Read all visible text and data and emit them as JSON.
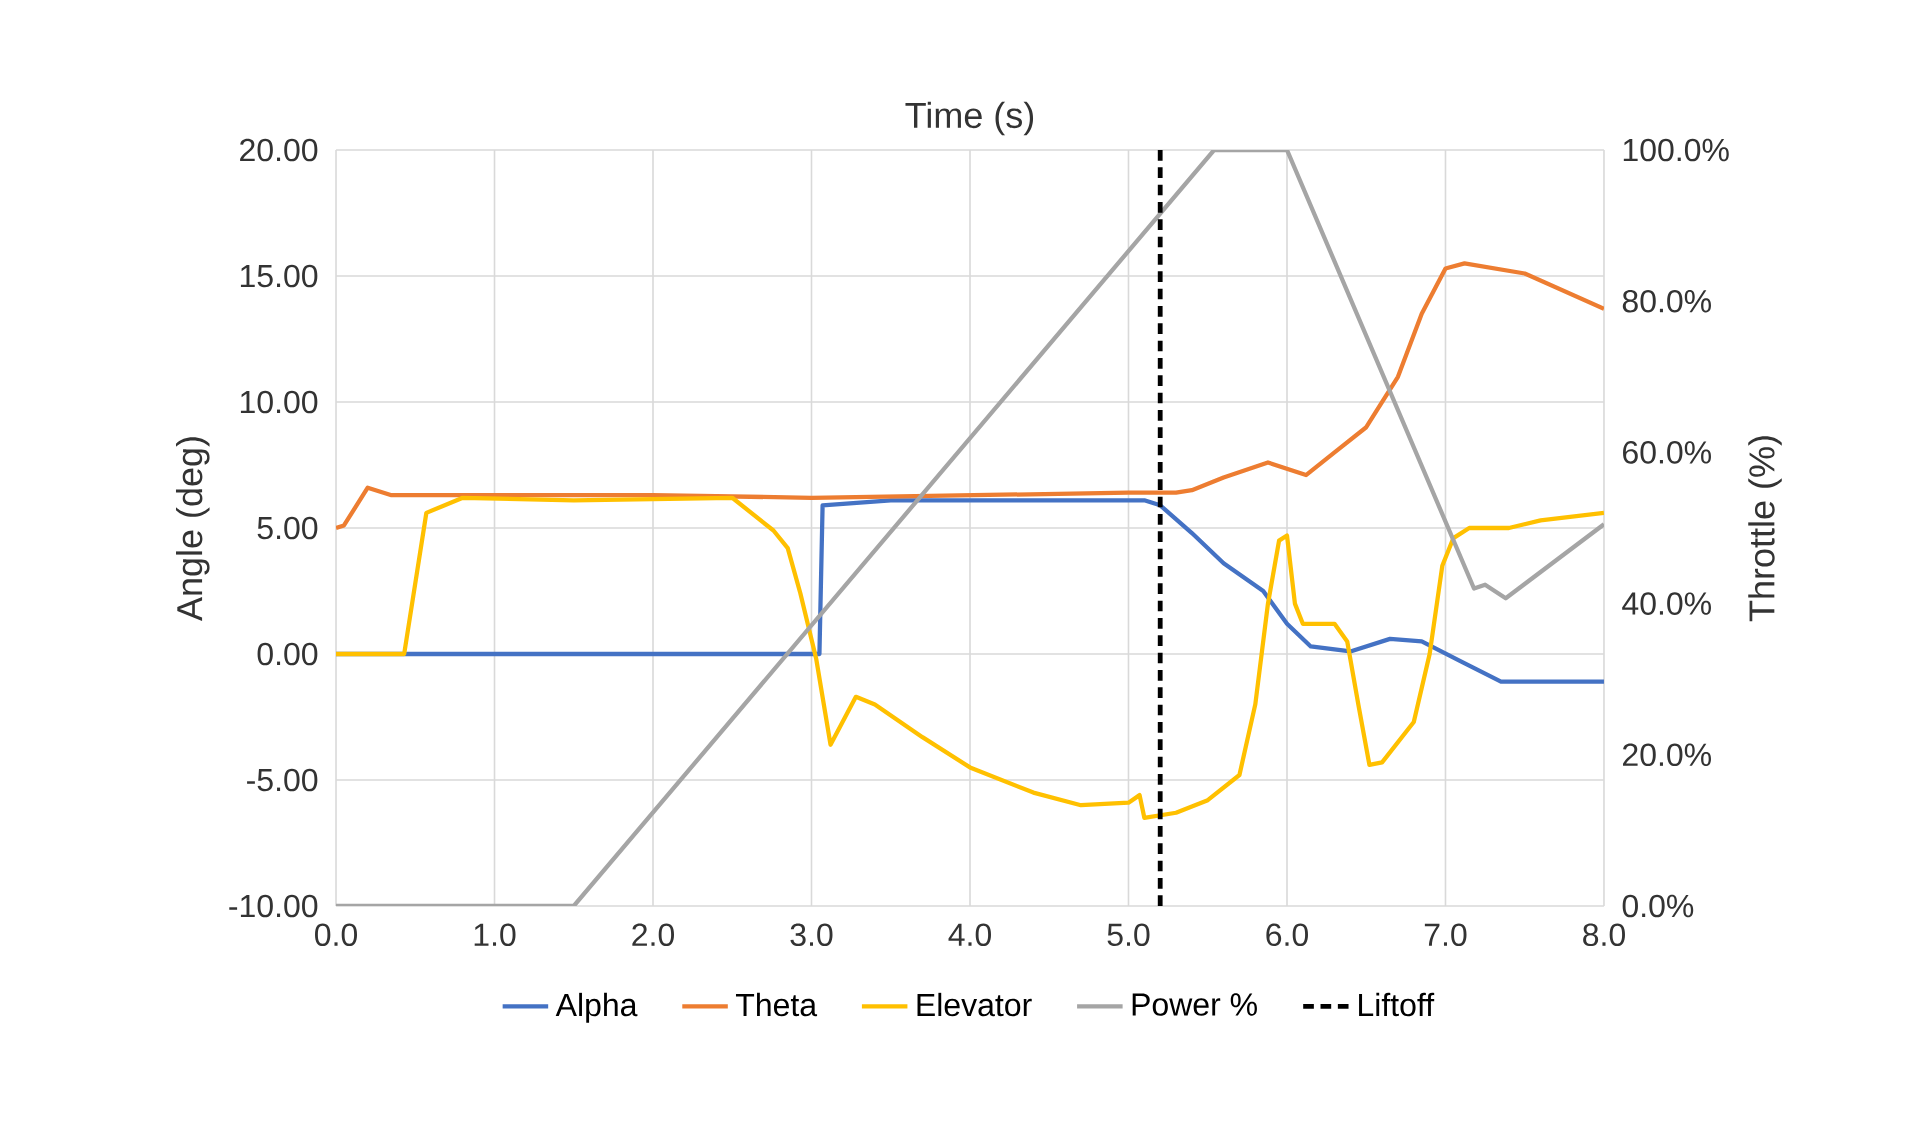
{
  "chart_data": {
    "type": "line",
    "title": "Time (s)",
    "ylabel": "Angle (deg)",
    "y2label": "Throttle (%)",
    "xlim": [
      0,
      8
    ],
    "xticks": [
      {
        "value": 0,
        "label": "0.0"
      },
      {
        "value": 1,
        "label": "1.0"
      },
      {
        "value": 2,
        "label": "2.0"
      },
      {
        "value": 3,
        "label": "3.0"
      },
      {
        "value": 4,
        "label": "4.0"
      },
      {
        "value": 5,
        "label": "5.0"
      },
      {
        "value": 6,
        "label": "6.0"
      },
      {
        "value": 7,
        "label": "7.0"
      },
      {
        "value": 8,
        "label": "8.0"
      }
    ],
    "ylim": [
      -10,
      20
    ],
    "yticks": [
      {
        "value": -10,
        "label": "-10.00"
      },
      {
        "value": -5,
        "label": "-5.00"
      },
      {
        "value": 0,
        "label": "0.00"
      },
      {
        "value": 5,
        "label": "5.00"
      },
      {
        "value": 10,
        "label": "10.00"
      },
      {
        "value": 15,
        "label": "15.00"
      },
      {
        "value": 20,
        "label": "20.00"
      }
    ],
    "y2lim": [
      0,
      100
    ],
    "y2ticks": [
      {
        "value": 0,
        "label": "0.0%"
      },
      {
        "value": 20,
        "label": "20.0%"
      },
      {
        "value": 40,
        "label": "40.0%"
      },
      {
        "value": 60,
        "label": "60.0%"
      },
      {
        "value": 80,
        "label": "80.0%"
      },
      {
        "value": 100,
        "label": "100.0%"
      }
    ],
    "grid": true,
    "legend": "bottom",
    "marker": "none",
    "series": [
      {
        "name": "Alpha",
        "color": "#4472c4",
        "x": [
          0,
          3.05,
          3.07,
          3.5,
          5.1,
          5.2,
          5.4,
          5.6,
          5.85,
          6.0,
          6.15,
          6.4,
          6.65,
          6.85,
          7.1,
          7.35,
          8.0
        ],
        "values": [
          0,
          0,
          5.9,
          6.1,
          6.1,
          5.9,
          4.8,
          3.6,
          2.5,
          1.2,
          0.3,
          0.1,
          0.6,
          0.5,
          -0.3,
          -1.1,
          -1.1
        ]
      },
      {
        "name": "Theta",
        "color": "#ed7d31",
        "x": [
          0,
          0.05,
          0.2,
          0.35,
          1.0,
          2.0,
          3.0,
          4.0,
          5.0,
          5.3,
          5.4,
          5.6,
          5.88,
          6.12,
          6.3,
          6.5,
          6.7,
          6.85,
          7.0,
          7.12,
          7.5,
          8.0
        ],
        "values": [
          5.0,
          5.1,
          6.6,
          6.3,
          6.3,
          6.3,
          6.2,
          6.3,
          6.4,
          6.4,
          6.5,
          7.0,
          7.6,
          7.1,
          8.0,
          9.0,
          11.0,
          13.5,
          15.3,
          15.5,
          15.1,
          13.7
        ]
      },
      {
        "name": "Elevator",
        "color": "#ffc000",
        "x": [
          0,
          0.43,
          0.57,
          0.8,
          1.5,
          2.5,
          2.76,
          2.85,
          2.93,
          3.03,
          3.12,
          3.28,
          3.4,
          3.7,
          4.0,
          4.4,
          4.7,
          5.0,
          5.07,
          5.1,
          5.3,
          5.5,
          5.7,
          5.8,
          5.88,
          5.95,
          6.0,
          6.05,
          6.1,
          6.3,
          6.38,
          6.45,
          6.52,
          6.6,
          6.7,
          6.8,
          6.9,
          6.98,
          7.05,
          7.15,
          7.4,
          7.6,
          8.0
        ],
        "values": [
          0,
          0,
          5.6,
          6.2,
          6.1,
          6.2,
          4.9,
          4.2,
          2.4,
          -0.2,
          -3.6,
          -1.7,
          -2.0,
          -3.3,
          -4.5,
          -5.5,
          -6.0,
          -5.9,
          -5.6,
          -6.5,
          -6.3,
          -5.8,
          -4.8,
          -2.0,
          2.0,
          4.5,
          4.7,
          2.0,
          1.2,
          1.2,
          0.5,
          -2.0,
          -4.4,
          -4.3,
          -3.5,
          -2.7,
          0,
          3.5,
          4.6,
          5.0,
          5.0,
          5.3,
          5.6
        ]
      },
      {
        "name": "Power %",
        "color": "#a5a5a5",
        "axis": "y2",
        "x": [
          0,
          1.5,
          5.54,
          6.0,
          7.18,
          7.25,
          7.38,
          8.0
        ],
        "values": [
          0,
          0,
          100,
          100,
          42,
          42.5,
          40.7,
          50.5
        ]
      }
    ],
    "ref_lines": [
      {
        "axis": "x",
        "value": 5.2,
        "label": "Liftoff",
        "color": "#000000",
        "line_style": "dashed"
      }
    ]
  }
}
